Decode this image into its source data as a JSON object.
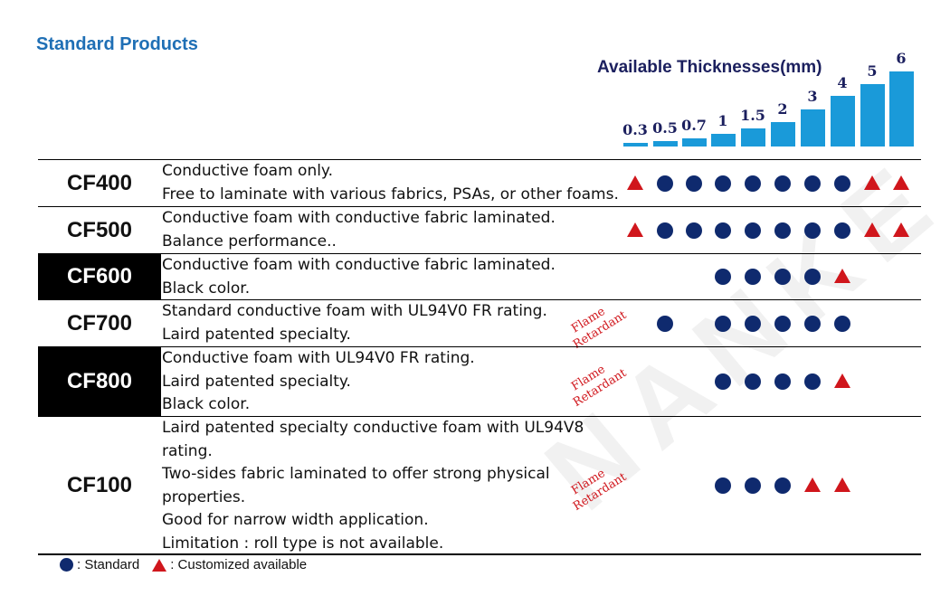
{
  "title": "Standard Products",
  "thicknesses_title": "Available Thicknesses(mm)",
  "thicknesses": [
    "0.3",
    "0.5",
    "0.7",
    "1",
    "1.5",
    "2",
    "3",
    "4",
    "5",
    "6"
  ],
  "flame_retardant": [
    "Flame",
    "Retardant"
  ],
  "legend": {
    "standard": ": Standard",
    "custom": ": Customized available"
  },
  "colors": {
    "accent": "#1f6fb5",
    "bar": "#1a9ad9",
    "dot": "#0f2a6e",
    "triangle": "#d0161c"
  },
  "products": [
    {
      "code": "CF400",
      "dark": false,
      "lines": [
        "Conductive foam only.",
        "Free to laminate with various fabrics, PSAs, or other foams."
      ],
      "marks": [
        "tri",
        "dot",
        "dot",
        "dot",
        "dot",
        "dot",
        "dot",
        "dot",
        "tri",
        "tri"
      ]
    },
    {
      "code": "CF500",
      "dark": false,
      "lines": [
        "Conductive foam with conductive fabric laminated.",
        "Balance performance.."
      ],
      "marks": [
        "tri",
        "dot",
        "dot",
        "dot",
        "dot",
        "dot",
        "dot",
        "dot",
        "tri",
        "tri"
      ]
    },
    {
      "code": "CF600",
      "dark": true,
      "lines": [
        "Conductive foam with conductive fabric laminated.",
        "Black color."
      ],
      "marks": [
        "",
        "",
        "",
        "dot",
        "dot",
        "dot",
        "dot",
        "tri",
        "",
        ""
      ]
    },
    {
      "code": "CF700",
      "dark": false,
      "flame": true,
      "lines": [
        "Standard conductive foam with UL94V0 FR rating.",
        "Laird patented specialty."
      ],
      "marks": [
        "",
        "dot",
        "",
        "dot",
        "dot",
        "dot",
        "dot",
        "dot",
        "",
        ""
      ]
    },
    {
      "code": "CF800",
      "dark": true,
      "flame": true,
      "lines": [
        "Conductive foam with UL94V0 FR rating.",
        "Laird patented specialty.",
        "Black color."
      ],
      "marks": [
        "",
        "",
        "",
        "dot",
        "dot",
        "dot",
        "dot",
        "tri",
        "",
        ""
      ]
    },
    {
      "code": "CF100",
      "dark": false,
      "flame": true,
      "lines": [
        "Laird patented specialty conductive foam with UL94V8",
        "rating.",
        "Two-sides fabric laminated to offer strong physical",
        "properties.",
        "Good for narrow width application.",
        "Limitation : roll type is not available."
      ],
      "marks": [
        "",
        "",
        "",
        "dot",
        "dot",
        "dot",
        "tri",
        "tri",
        "",
        ""
      ]
    }
  ]
}
